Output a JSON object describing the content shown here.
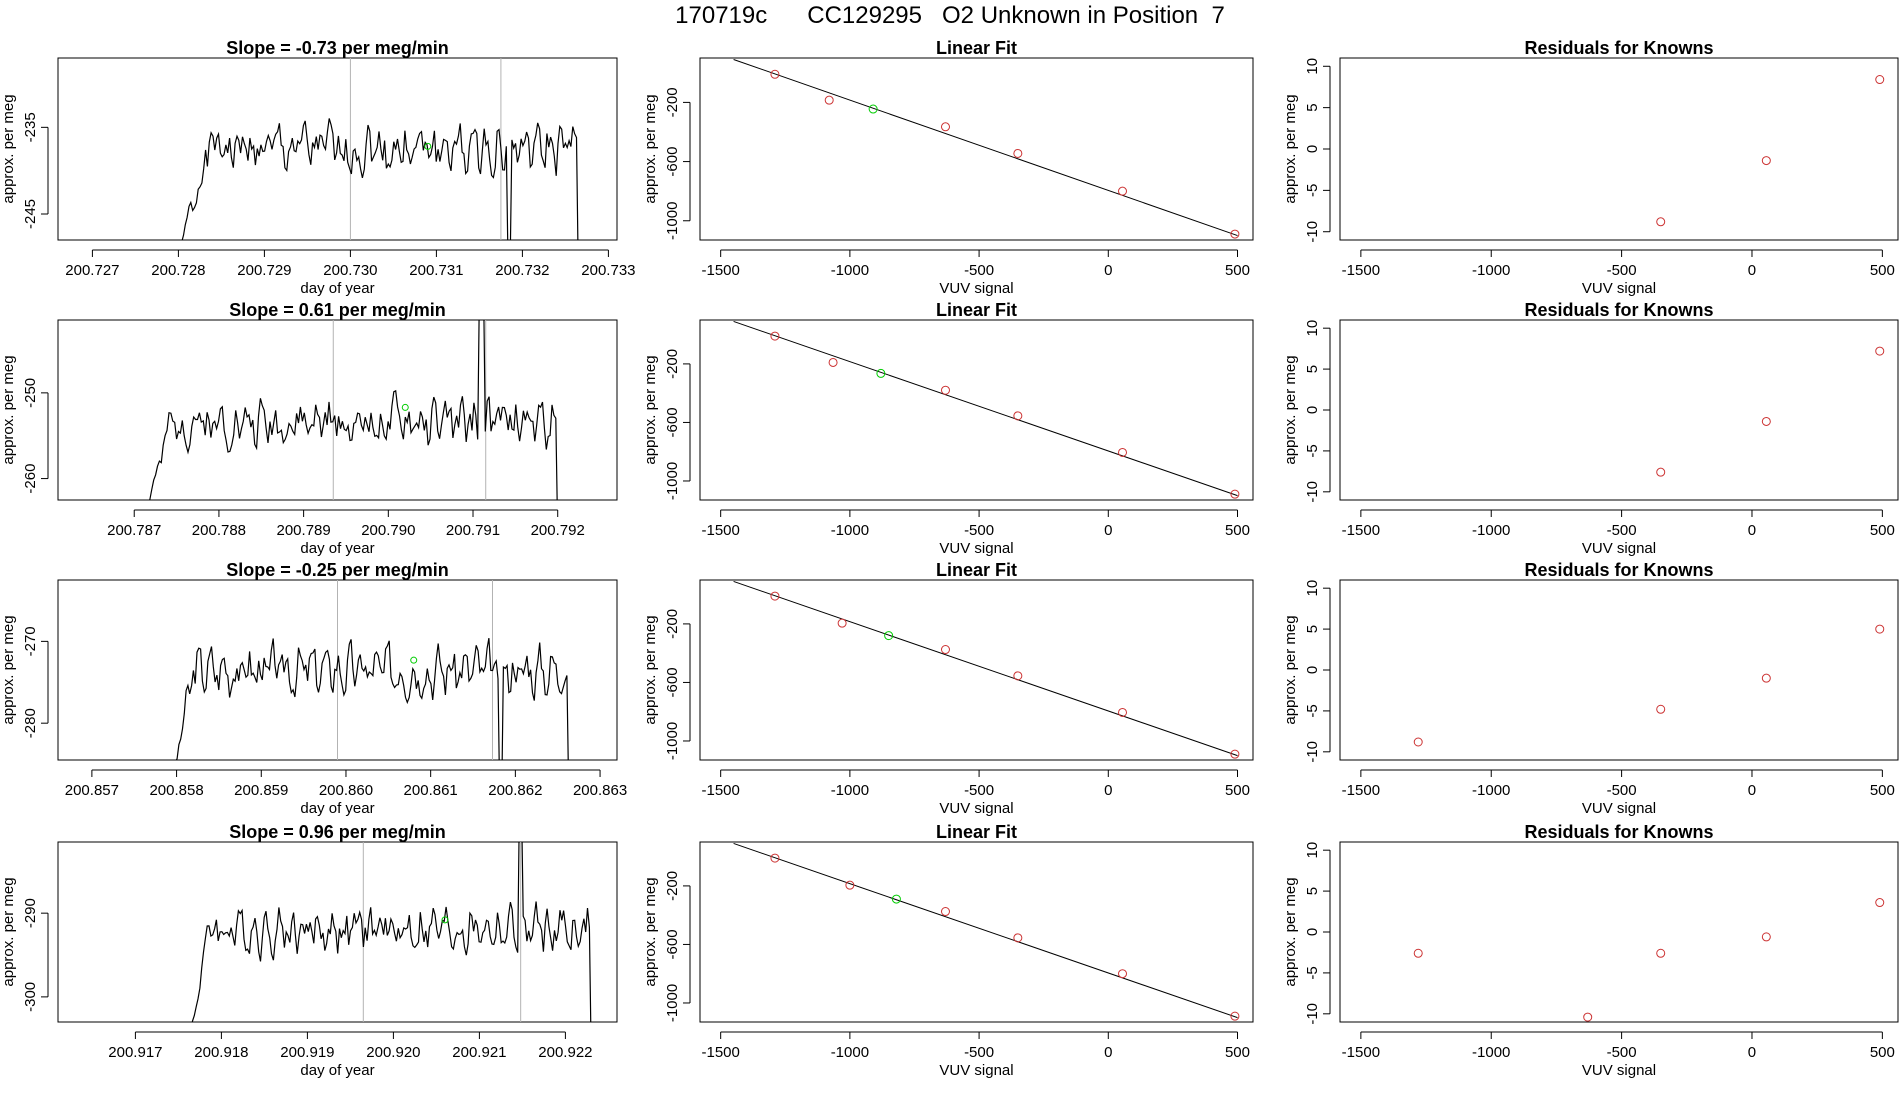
{
  "page": {
    "title": "170719c      CC129295   O2 Unknown in Position  7"
  },
  "colors": {
    "trace": "#000000",
    "unknown_marker": "#00cc00",
    "known_marker": "#cc3333",
    "fit_line": "#000000",
    "marker_line": "#b3b3b3"
  },
  "rows": [
    {
      "slope_chart": {
        "type": "line",
        "title": "Slope =  -0.73  per meg/min",
        "xlabel": "day of year",
        "ylabel": "approx. per meg",
        "x_ticks": [
          "200.727",
          "200.728",
          "200.729",
          "200.730",
          "200.731",
          "200.732",
          "200.733"
        ],
        "x_tick_values": [
          200.727,
          200.728,
          200.729,
          200.73,
          200.731,
          200.732,
          200.733
        ],
        "y_ticks": [
          "-235",
          "-245"
        ],
        "y_tick_values": [
          -235,
          -245
        ],
        "xlim": [
          200.7266,
          200.7331
        ],
        "ylim": [
          -248,
          -227
        ],
        "trace_start": 200.72793,
        "trace_end": 200.73265,
        "trace_mean": -237.5,
        "trace_amplitude": 3.2,
        "trace_seed": 1,
        "ramp_end": 200.72835,
        "vertical_lines": [
          200.73,
          200.73175
        ],
        "spike_x": 200.73185,
        "spike_value": -252,
        "unknown_point": {
          "x": 200.7309,
          "y": -237.2
        }
      },
      "fit_chart": {
        "type": "scatter",
        "title": "Linear Fit",
        "xlabel": "VUV signal",
        "ylabel": "approx. per meg",
        "x_ticks": [
          "-1500",
          "-1000",
          "-500",
          "0",
          "500"
        ],
        "x_tick_values": [
          -1500,
          -1000,
          -500,
          0,
          500
        ],
        "y_ticks": [
          "-200",
          "-600",
          "-1000"
        ],
        "y_tick_values": [
          -200,
          -600,
          -1000
        ],
        "xlim": [
          -1580,
          560
        ],
        "ylim": [
          -1130,
          100
        ],
        "fit_line": {
          "x1": -1450,
          "y1": 90,
          "x2": 500,
          "y2": -1100
        },
        "known_points": [
          {
            "x": -1290,
            "y": -10
          },
          {
            "x": -1080,
            "y": -185
          },
          {
            "x": -630,
            "y": -365
          },
          {
            "x": -350,
            "y": -545
          },
          {
            "x": 55,
            "y": -800
          },
          {
            "x": 490,
            "y": -1090
          }
        ],
        "unknown_points": [
          {
            "x": -910,
            "y": -245
          }
        ]
      },
      "residual_chart": {
        "type": "scatter",
        "title": "Residuals for Knowns",
        "xlabel": "VUV signal",
        "ylabel": "approx. per meg",
        "x_ticks": [
          "-1500",
          "-1000",
          "-500",
          "0",
          "500"
        ],
        "x_tick_values": [
          -1500,
          -1000,
          -500,
          0,
          500
        ],
        "y_ticks": [
          "10",
          "5",
          "0",
          "-5",
          "-10"
        ],
        "y_tick_values": [
          10,
          5,
          0,
          -5,
          -10
        ],
        "xlim": [
          -1580,
          560
        ],
        "ylim": [
          -11,
          11
        ],
        "points": [
          {
            "x": -350,
            "y": -8.8
          },
          {
            "x": 55,
            "y": -1.4
          },
          {
            "x": 490,
            "y": 8.4
          }
        ]
      }
    },
    {
      "slope_chart": {
        "type": "line",
        "title": "Slope =  0.61  per meg/min",
        "xlabel": "day of year",
        "ylabel": "approx. per meg",
        "x_ticks": [
          "200.787",
          "200.788",
          "200.789",
          "200.790",
          "200.791",
          "200.792"
        ],
        "x_tick_values": [
          200.787,
          200.788,
          200.789,
          200.79,
          200.791,
          200.792
        ],
        "y_ticks": [
          "-250",
          "-260"
        ],
        "y_tick_values": [
          -250,
          -260
        ],
        "xlim": [
          200.7861,
          200.7927
        ],
        "ylim": [
          -262.5,
          -241.5
        ],
        "trace_start": 200.78705,
        "trace_end": 200.792,
        "trace_mean": -253.5,
        "trace_amplitude": 3.0,
        "trace_seed": 2,
        "ramp_end": 200.78745,
        "vertical_lines": [
          200.78935,
          200.79115
        ],
        "spike_x": 200.7911,
        "spike_value": -236,
        "unknown_point": {
          "x": 200.7902,
          "y": -251.7
        }
      },
      "fit_chart": {
        "type": "scatter",
        "title": "Linear Fit",
        "xlabel": "VUV signal",
        "ylabel": "approx. per meg",
        "x_ticks": [
          "-1500",
          "-1000",
          "-500",
          "0",
          "500"
        ],
        "x_tick_values": [
          -1500,
          -1000,
          -500,
          0,
          500
        ],
        "y_ticks": [
          "-200",
          "-600",
          "-1000"
        ],
        "y_tick_values": [
          -200,
          -600,
          -1000
        ],
        "xlim": [
          -1580,
          560
        ],
        "ylim": [
          -1130,
          100
        ],
        "fit_line": {
          "x1": -1450,
          "y1": 90,
          "x2": 500,
          "y2": -1100
        },
        "known_points": [
          {
            "x": -1290,
            "y": -10
          },
          {
            "x": -1065,
            "y": -190
          },
          {
            "x": -630,
            "y": -380
          },
          {
            "x": -350,
            "y": -555
          },
          {
            "x": 55,
            "y": -805
          },
          {
            "x": 490,
            "y": -1090
          }
        ],
        "unknown_points": [
          {
            "x": -880,
            "y": -265
          }
        ]
      },
      "residual_chart": {
        "type": "scatter",
        "title": "Residuals for Knowns",
        "xlabel": "VUV signal",
        "ylabel": "approx. per meg",
        "x_ticks": [
          "-1500",
          "-1000",
          "-500",
          "0",
          "500"
        ],
        "x_tick_values": [
          -1500,
          -1000,
          -500,
          0,
          500
        ],
        "y_ticks": [
          "10",
          "5",
          "0",
          "-5",
          "-10"
        ],
        "y_tick_values": [
          10,
          5,
          0,
          -5,
          -10
        ],
        "xlim": [
          -1580,
          560
        ],
        "ylim": [
          -11,
          11
        ],
        "points": [
          {
            "x": -350,
            "y": -7.6
          },
          {
            "x": 55,
            "y": -1.4
          },
          {
            "x": 490,
            "y": 7.2
          }
        ]
      }
    },
    {
      "slope_chart": {
        "type": "line",
        "title": "Slope =  -0.25  per meg/min",
        "xlabel": "day of year",
        "ylabel": "approx. per meg",
        "x_ticks": [
          "200.857",
          "200.858",
          "200.859",
          "200.860",
          "200.861",
          "200.862",
          "200.863"
        ],
        "x_tick_values": [
          200.857,
          200.858,
          200.859,
          200.86,
          200.861,
          200.862,
          200.863
        ],
        "y_ticks": [
          "-270",
          "-280"
        ],
        "y_tick_values": [
          -270,
          -280
        ],
        "xlim": [
          200.8566,
          200.8632
        ],
        "ylim": [
          -284.5,
          -262.5
        ],
        "trace_start": 200.85792,
        "trace_end": 200.86263,
        "trace_mean": -273.5,
        "trace_amplitude": 3.3,
        "trace_seed": 3,
        "ramp_end": 200.8582,
        "vertical_lines": [
          200.8599,
          200.86173
        ],
        "spike_x": 200.86182,
        "spike_value": -290,
        "unknown_point": {
          "x": 200.8608,
          "y": -272.3
        }
      },
      "fit_chart": {
        "type": "scatter",
        "title": "Linear Fit",
        "xlabel": "VUV signal",
        "ylabel": "approx. per meg",
        "x_ticks": [
          "-1500",
          "-1000",
          "-500",
          "0",
          "500"
        ],
        "x_tick_values": [
          -1500,
          -1000,
          -500,
          0,
          500
        ],
        "y_ticks": [
          "-200",
          "-600",
          "-1000"
        ],
        "y_tick_values": [
          -200,
          -600,
          -1000
        ],
        "xlim": [
          -1580,
          560
        ],
        "ylim": [
          -1130,
          100
        ],
        "fit_line": {
          "x1": -1450,
          "y1": 90,
          "x2": 500,
          "y2": -1100
        },
        "known_points": [
          {
            "x": -1290,
            "y": -10
          },
          {
            "x": -1030,
            "y": -195
          },
          {
            "x": -630,
            "y": -375
          },
          {
            "x": -350,
            "y": -555
          },
          {
            "x": 55,
            "y": -805
          },
          {
            "x": 490,
            "y": -1090
          }
        ],
        "unknown_points": [
          {
            "x": -850,
            "y": -280
          }
        ]
      },
      "residual_chart": {
        "type": "scatter",
        "title": "Residuals for Knowns",
        "xlabel": "VUV signal",
        "ylabel": "approx. per meg",
        "x_ticks": [
          "-1500",
          "-1000",
          "-500",
          "0",
          "500"
        ],
        "x_tick_values": [
          -1500,
          -1000,
          -500,
          0,
          500
        ],
        "y_ticks": [
          "10",
          "5",
          "0",
          "-5",
          "-10"
        ],
        "y_tick_values": [
          10,
          5,
          0,
          -5,
          -10
        ],
        "xlim": [
          -1580,
          560
        ],
        "ylim": [
          -11,
          11
        ],
        "points": [
          {
            "x": -1280,
            "y": -8.8
          },
          {
            "x": -350,
            "y": -4.8
          },
          {
            "x": 55,
            "y": -1.0
          },
          {
            "x": 490,
            "y": 5.0
          }
        ]
      }
    },
    {
      "slope_chart": {
        "type": "line",
        "title": "Slope =  0.96  per meg/min",
        "xlabel": "day of year",
        "ylabel": "approx. per meg",
        "x_ticks": [
          "200.917",
          "200.918",
          "200.919",
          "200.920",
          "200.921",
          "200.922"
        ],
        "x_tick_values": [
          200.917,
          200.918,
          200.919,
          200.92,
          200.921,
          200.922
        ],
        "y_ticks": [
          "-290",
          "-300"
        ],
        "y_tick_values": [
          -290,
          -300
        ],
        "xlim": [
          200.9161,
          200.9226
        ],
        "ylim": [
          -303,
          -281.5
        ],
        "trace_start": 200.9176,
        "trace_end": 200.9223,
        "trace_mean": -292.0,
        "trace_amplitude": 3.0,
        "trace_seed": 4,
        "ramp_end": 200.91785,
        "vertical_lines": [
          200.91965,
          200.92148
        ],
        "spike_x": 200.92148,
        "spike_value": -276,
        "unknown_point": {
          "x": 200.9206,
          "y": -290.8
        }
      },
      "fit_chart": {
        "type": "scatter",
        "title": "Linear Fit",
        "xlabel": "VUV signal",
        "ylabel": "approx. per meg",
        "x_ticks": [
          "-1500",
          "-1000",
          "-500",
          "0",
          "500"
        ],
        "x_tick_values": [
          -1500,
          -1000,
          -500,
          0,
          500
        ],
        "y_ticks": [
          "-200",
          "-600",
          "-1000"
        ],
        "y_tick_values": [
          -200,
          -600,
          -1000
        ],
        "xlim": [
          -1580,
          560
        ],
        "ylim": [
          -1130,
          100
        ],
        "fit_line": {
          "x1": -1450,
          "y1": 90,
          "x2": 500,
          "y2": -1100
        },
        "known_points": [
          {
            "x": -1290,
            "y": -10
          },
          {
            "x": -1000,
            "y": -195
          },
          {
            "x": -630,
            "y": -375
          },
          {
            "x": -350,
            "y": -555
          },
          {
            "x": 55,
            "y": -800
          },
          {
            "x": 490,
            "y": -1090
          }
        ],
        "unknown_points": [
          {
            "x": -820,
            "y": -290
          }
        ]
      },
      "residual_chart": {
        "type": "scatter",
        "title": "Residuals for Knowns",
        "xlabel": "VUV signal",
        "ylabel": "approx. per meg",
        "x_ticks": [
          "-1500",
          "-1000",
          "-500",
          "0",
          "500"
        ],
        "x_tick_values": [
          -1500,
          -1000,
          -500,
          0,
          500
        ],
        "y_ticks": [
          "10",
          "5",
          "0",
          "-5",
          "-10"
        ],
        "y_tick_values": [
          10,
          5,
          0,
          -5,
          -10
        ],
        "xlim": [
          -1580,
          560
        ],
        "ylim": [
          -11,
          11
        ],
        "points": [
          {
            "x": -1280,
            "y": -2.6
          },
          {
            "x": -630,
            "y": -10.4
          },
          {
            "x": -350,
            "y": -2.6
          },
          {
            "x": 55,
            "y": -0.6
          },
          {
            "x": 490,
            "y": 3.6
          }
        ]
      }
    }
  ]
}
